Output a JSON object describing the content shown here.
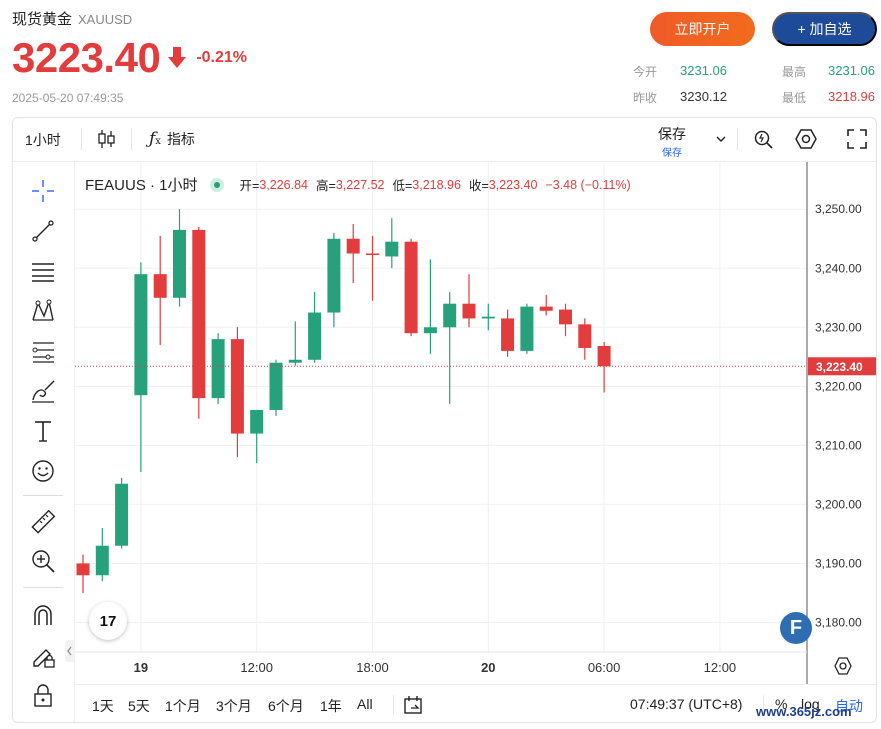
{
  "header": {
    "title": "现货黄金",
    "code": "XAUUSD",
    "price": "3223.40",
    "change": "-0.21%",
    "timestamp": "2025-05-20 07:49:35",
    "open_account_label": "立即开户",
    "add_watch_label": "+ 加自选"
  },
  "stats": {
    "today_open_label": "今开",
    "today_open": "3231.06",
    "high_label": "最高",
    "high": "3231.06",
    "prev_close_label": "昨收",
    "prev_close": "3230.12",
    "low_label": "最低",
    "low": "3218.96"
  },
  "toolbar": {
    "interval": "1小时",
    "indicators": "指标",
    "save": "保存",
    "save_sub": "保存"
  },
  "legend": {
    "symbol": "FEAUUS · 1小时",
    "open_label": "开=",
    "open": "3,226.84",
    "high_label": "高=",
    "high": "3,227.52",
    "low_label": "低=",
    "low": "3,218.96",
    "close_label": "收=",
    "close": "3,223.40",
    "change": "−3.48 (−0.11%)"
  },
  "bottom": {
    "ranges": [
      "1天",
      "5天",
      "1个月",
      "3个月",
      "6个月",
      "1年",
      "All"
    ],
    "clock": "07:49:37 (UTC+8)",
    "percent": "%",
    "log": "log",
    "auto": "自动"
  },
  "watermark": "www.365jz.com",
  "colors": {
    "up": "#26a17b",
    "down": "#e23c3c",
    "accent": "#1e4a9a"
  },
  "chart_data": {
    "type": "candlestick",
    "y_ticks": [
      "3,180.00",
      "3,190.00",
      "3,200.00",
      "3,210.00",
      "3,220.00",
      "3,230.00",
      "3,240.00",
      "3,250.00"
    ],
    "x_ticks": [
      {
        "label": "19",
        "index": 3
      },
      {
        "label": "12:00",
        "index": 9
      },
      {
        "label": "18:00",
        "index": 15
      },
      {
        "label": "20",
        "index": 21
      },
      {
        "label": "06:00",
        "index": 27
      },
      {
        "label": "12:00",
        "index": 33
      }
    ],
    "ylim": [
      3175,
      3258
    ],
    "current_price": 3223.4,
    "current_price_label": "3,223.40",
    "candles": [
      {
        "o": 3190.0,
        "h": 3191.5,
        "l": 3185.0,
        "c": 3188.0
      },
      {
        "o": 3188.0,
        "h": 3196.0,
        "l": 3187.0,
        "c": 3193.0
      },
      {
        "o": 3193.0,
        "h": 3204.5,
        "l": 3192.5,
        "c": 3203.5
      },
      {
        "o": 3218.5,
        "h": 3241.0,
        "l": 3205.5,
        "c": 3239.0
      },
      {
        "o": 3239.0,
        "h": 3245.5,
        "l": 3227.0,
        "c": 3235.0
      },
      {
        "o": 3235.0,
        "h": 3250.0,
        "l": 3233.5,
        "c": 3246.5
      },
      {
        "o": 3246.5,
        "h": 3247.0,
        "l": 3214.5,
        "c": 3218.0
      },
      {
        "o": 3218.0,
        "h": 3229.0,
        "l": 3217.0,
        "c": 3228.0
      },
      {
        "o": 3228.0,
        "h": 3230.0,
        "l": 3208.0,
        "c": 3212.0
      },
      {
        "o": 3212.0,
        "h": 3216.0,
        "l": 3207.0,
        "c": 3216.0
      },
      {
        "o": 3216.0,
        "h": 3224.5,
        "l": 3215.0,
        "c": 3224.0
      },
      {
        "o": 3224.0,
        "h": 3231.0,
        "l": 3223.5,
        "c": 3224.5
      },
      {
        "o": 3224.5,
        "h": 3236.0,
        "l": 3224.0,
        "c": 3232.5
      },
      {
        "o": 3232.5,
        "h": 3246.0,
        "l": 3230.0,
        "c": 3245.0
      },
      {
        "o": 3245.0,
        "h": 3247.5,
        "l": 3237.5,
        "c": 3242.5
      },
      {
        "o": 3242.5,
        "h": 3245.5,
        "l": 3234.5,
        "c": 3242.3
      },
      {
        "o": 3242.0,
        "h": 3248.5,
        "l": 3240.0,
        "c": 3244.5
      },
      {
        "o": 3244.5,
        "h": 3245.0,
        "l": 3228.5,
        "c": 3229.0
      },
      {
        "o": 3229.0,
        "h": 3241.5,
        "l": 3225.5,
        "c": 3230.0
      },
      {
        "o": 3230.0,
        "h": 3236.0,
        "l": 3217.0,
        "c": 3234.0
      },
      {
        "o": 3234.0,
        "h": 3239.0,
        "l": 3230.0,
        "c": 3231.5
      },
      {
        "o": 3231.5,
        "h": 3234.0,
        "l": 3229.5,
        "c": 3231.8
      },
      {
        "o": 3231.5,
        "h": 3233.0,
        "l": 3225.0,
        "c": 3226.0
      },
      {
        "o": 3226.0,
        "h": 3234.0,
        "l": 3225.5,
        "c": 3233.5
      },
      {
        "o": 3233.5,
        "h": 3235.5,
        "l": 3232.0,
        "c": 3232.8
      },
      {
        "o": 3233.0,
        "h": 3234.0,
        "l": 3228.5,
        "c": 3230.5
      },
      {
        "o": 3230.5,
        "h": 3231.5,
        "l": 3224.5,
        "c": 3226.5
      },
      {
        "o": 3226.84,
        "h": 3227.52,
        "l": 3218.96,
        "c": 3223.4
      }
    ]
  }
}
